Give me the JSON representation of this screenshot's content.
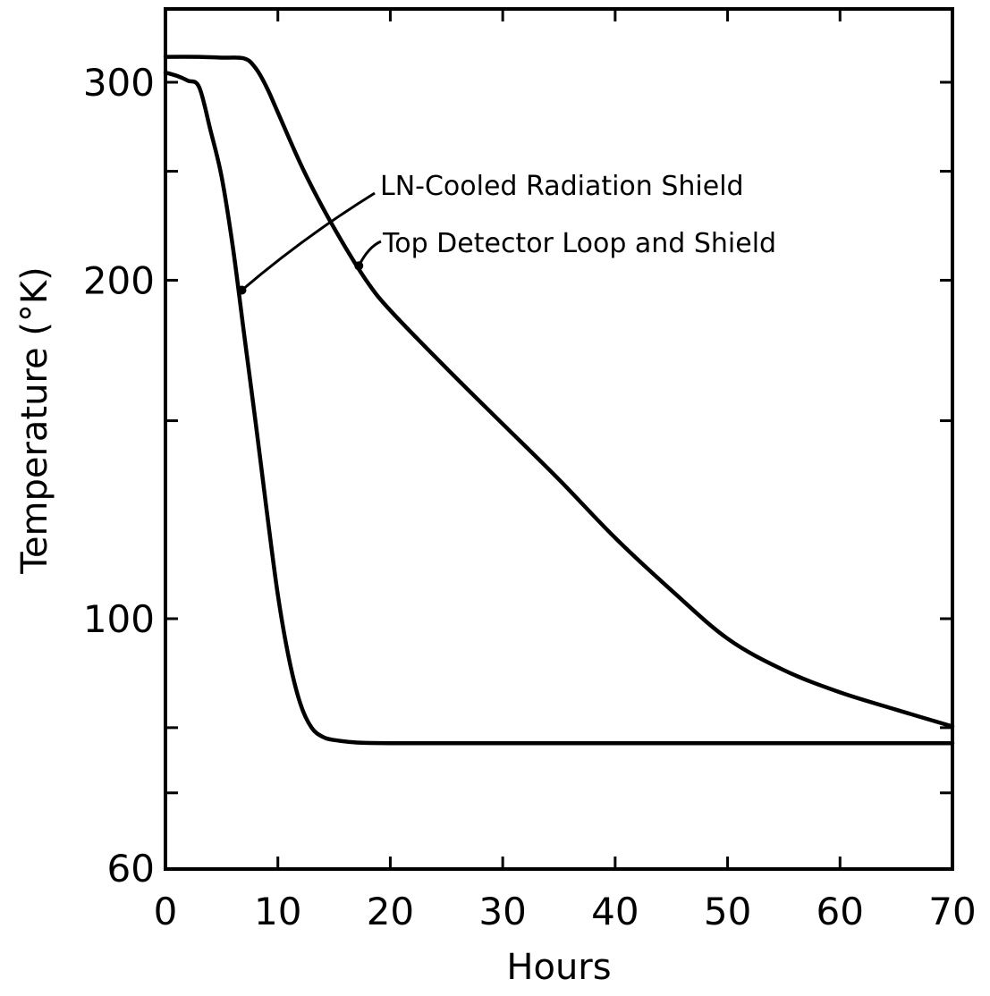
{
  "chart_data": {
    "type": "line",
    "xlabel": "Hours",
    "ylabel": "Temperature  (°K)",
    "xlim": [
      0,
      70
    ],
    "ylim": [
      60,
      330
    ],
    "yscale": "log",
    "x_ticks": [
      0,
      10,
      20,
      30,
      40,
      50,
      60,
      70
    ],
    "x_tick_labels": [
      "0",
      "10",
      "20",
      "30",
      "40",
      "50",
      "60",
      "70"
    ],
    "y_ticks_labeled": [
      60,
      100,
      200,
      300
    ],
    "y_tick_labels": [
      "60",
      "100",
      "200",
      "300"
    ],
    "y_ticks_minor": [
      70,
      80,
      150,
      250
    ],
    "grid": false,
    "series": [
      {
        "name": "LN-Cooled Radiation Shield",
        "points": [
          [
            0,
            306
          ],
          [
            1,
            304
          ],
          [
            2,
            301
          ],
          [
            3,
            297
          ],
          [
            4,
            272
          ],
          [
            5,
            247
          ],
          [
            6,
            214
          ],
          [
            7,
            179
          ],
          [
            8,
            150
          ],
          [
            9,
            125
          ],
          [
            10,
            105
          ],
          [
            11,
            92
          ],
          [
            12,
            84
          ],
          [
            13,
            80
          ],
          [
            14,
            78.5
          ],
          [
            15,
            78
          ],
          [
            17,
            77.6
          ],
          [
            20,
            77.5
          ],
          [
            30,
            77.5
          ],
          [
            40,
            77.5
          ],
          [
            50,
            77.5
          ],
          [
            60,
            77.5
          ],
          [
            70,
            77.5
          ]
        ]
      },
      {
        "name": "Top Detector Loop and Shield",
        "points": [
          [
            0,
            316
          ],
          [
            3,
            316
          ],
          [
            5,
            315.5
          ],
          [
            7,
            315
          ],
          [
            8,
            309
          ],
          [
            9,
            297
          ],
          [
            10,
            282
          ],
          [
            12,
            254
          ],
          [
            14,
            232
          ],
          [
            16,
            214
          ],
          [
            18,
            199
          ],
          [
            20,
            188
          ],
          [
            25,
            167
          ],
          [
            30,
            149
          ],
          [
            35,
            133
          ],
          [
            40,
            118
          ],
          [
            45,
            106
          ],
          [
            50,
            96
          ],
          [
            55,
            90
          ],
          [
            60,
            86
          ],
          [
            65,
            83
          ],
          [
            70,
            80.2
          ]
        ]
      }
    ],
    "annotations": [
      {
        "text": "LN-Cooled Radiation Shield",
        "series": "LN-Cooled Radiation Shield",
        "arrow_to": [
          6.8,
          196
        ]
      },
      {
        "text": "Top Detector Loop and Shield",
        "series": "Top Detector Loop and Shield",
        "arrow_to": [
          17.2,
          206
        ]
      }
    ]
  }
}
